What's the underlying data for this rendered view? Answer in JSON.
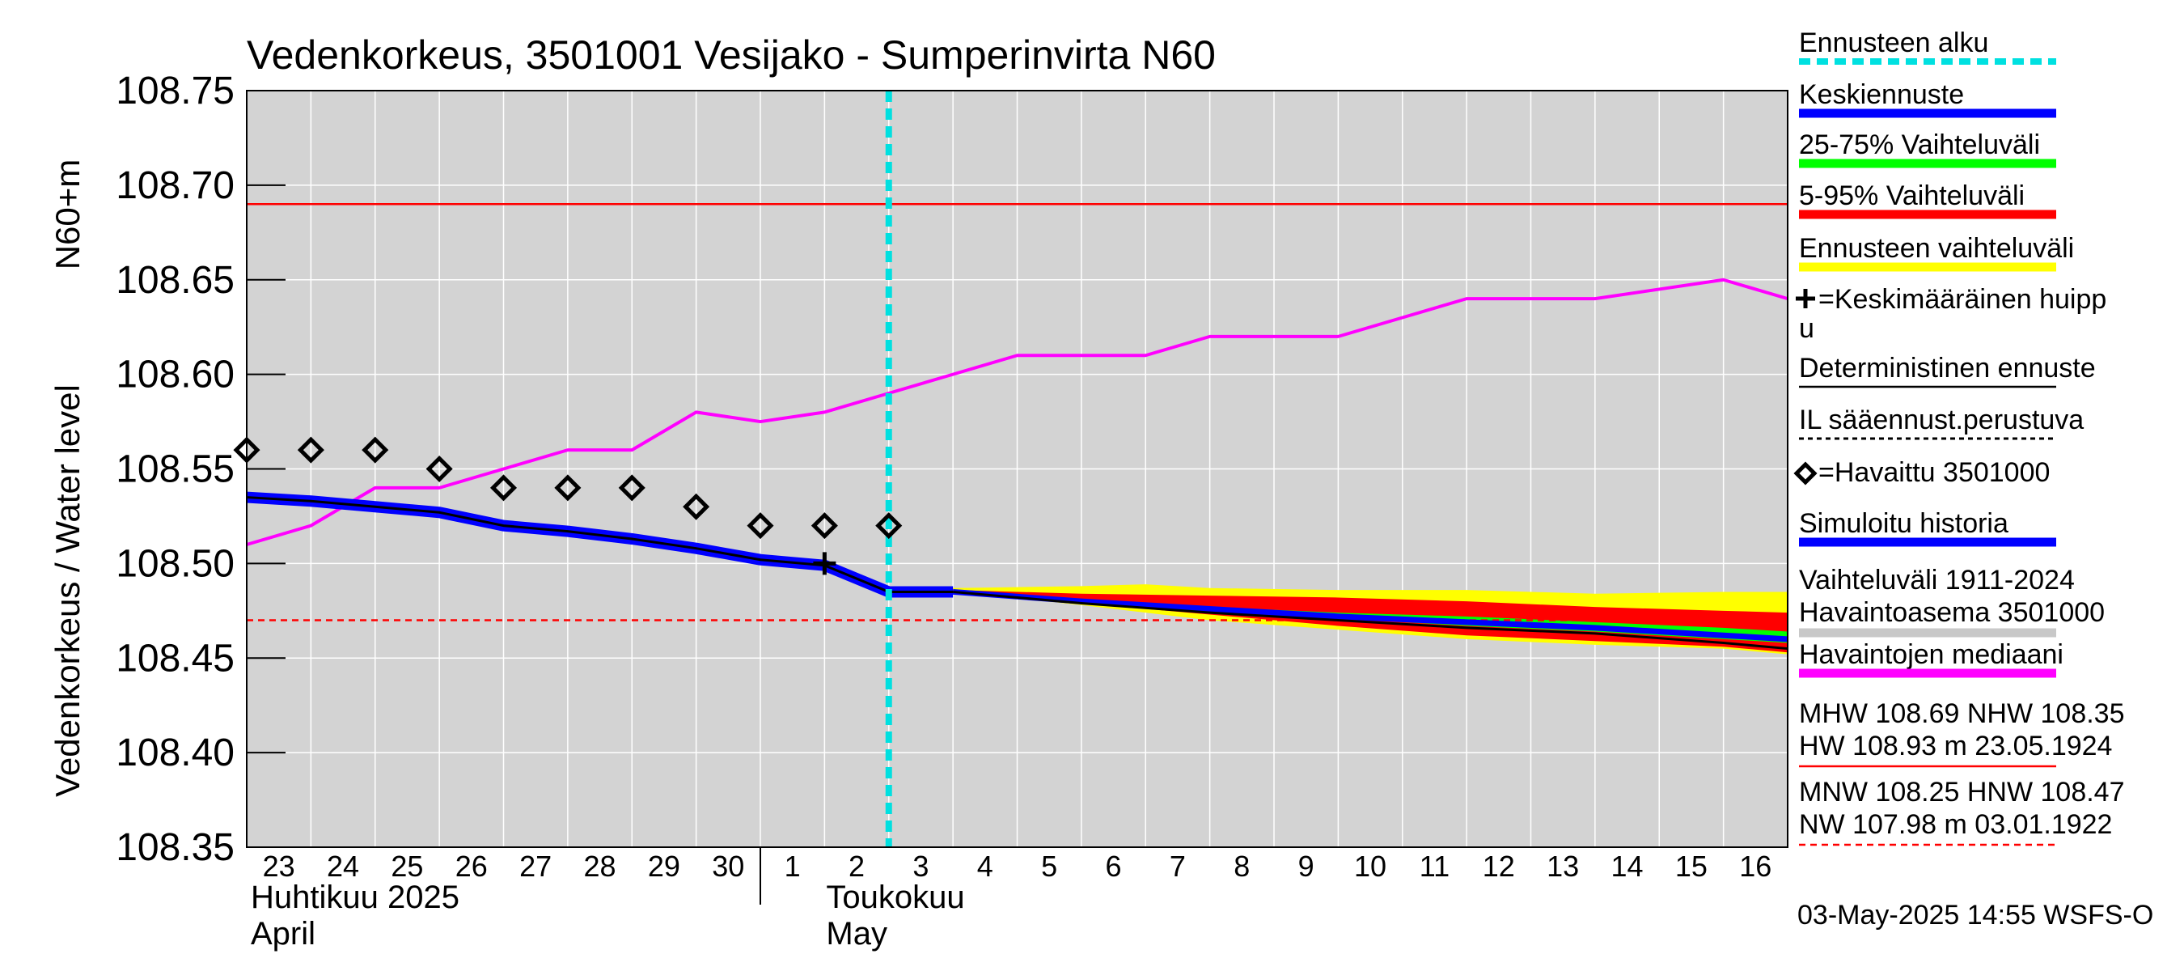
{
  "chart_data": {
    "type": "line",
    "title": "Vedenkorkeus, 3501001 Vesijako - Sumperinvirta N60",
    "ylabel_line1": "N60+m",
    "ylabel_line2": "Vedenkorkeus / Water level",
    "ylim": [
      108.35,
      108.75
    ],
    "y_ticks": [
      "108.75",
      "108.70",
      "108.65",
      "108.60",
      "108.55",
      "108.50",
      "108.45",
      "108.40",
      "108.35"
    ],
    "x_start": "2025-04-23",
    "x_end": "2025-05-17",
    "x_tick_labels": [
      "23",
      "24",
      "25",
      "26",
      "27",
      "28",
      "29",
      "30",
      "1",
      "2",
      "3",
      "4",
      "5",
      "6",
      "7",
      "8",
      "9",
      "10",
      "11",
      "12",
      "13",
      "14",
      "15",
      "16"
    ],
    "month_labels": [
      {
        "fi": "Huhtikuu  2025",
        "en": "April"
      },
      {
        "fi": "Toukokuu",
        "en": "May"
      }
    ],
    "forecast_start": "2025-05-03",
    "reference_lines": {
      "MHW": 108.69,
      "HNW": 108.47
    },
    "series": [
      {
        "name": "Havaintojen mediaani",
        "x": [
          "2025-04-23",
          "2025-04-24",
          "2025-04-25",
          "2025-04-26",
          "2025-04-27",
          "2025-04-28",
          "2025-04-29",
          "2025-04-30",
          "2025-05-01",
          "2025-05-02",
          "2025-05-03",
          "2025-05-04",
          "2025-05-05",
          "2025-05-06",
          "2025-05-07",
          "2025-05-08",
          "2025-05-09",
          "2025-05-10",
          "2025-05-11",
          "2025-05-12",
          "2025-05-13",
          "2025-05-14",
          "2025-05-15",
          "2025-05-16",
          "2025-05-17"
        ],
        "y": [
          108.51,
          108.52,
          108.54,
          108.54,
          108.55,
          108.56,
          108.56,
          108.58,
          108.575,
          108.58,
          108.59,
          108.6,
          108.61,
          108.61,
          108.61,
          108.62,
          108.62,
          108.62,
          108.63,
          108.64,
          108.64,
          108.64,
          108.645,
          108.65,
          108.64
        ]
      },
      {
        "name": "Simuloitu historia",
        "x": [
          "2025-04-23",
          "2025-04-24",
          "2025-04-25",
          "2025-04-26",
          "2025-04-27",
          "2025-04-28",
          "2025-04-29",
          "2025-04-30",
          "2025-05-01",
          "2025-05-02",
          "2025-05-03",
          "2025-05-04"
        ],
        "y": [
          108.535,
          108.533,
          108.53,
          108.527,
          108.52,
          108.517,
          108.513,
          108.508,
          108.502,
          108.499,
          108.485,
          108.485
        ]
      },
      {
        "name": "Keskiennuste",
        "x": [
          "2025-05-04",
          "2025-05-06",
          "2025-05-08",
          "2025-05-10",
          "2025-05-12",
          "2025-05-14",
          "2025-05-16",
          "2025-05-17"
        ],
        "y": [
          108.485,
          108.48,
          108.476,
          108.472,
          108.469,
          108.466,
          108.462,
          108.46
        ]
      },
      {
        "name": "Deterministinen ennuste",
        "x": [
          "2025-05-04",
          "2025-05-06",
          "2025-05-08",
          "2025-05-10",
          "2025-05-12",
          "2025-05-14",
          "2025-05-16",
          "2025-05-17"
        ],
        "y": [
          108.485,
          108.479,
          108.474,
          108.47,
          108.466,
          108.463,
          108.458,
          108.455
        ]
      },
      {
        "name": "=Havaittu 3501000",
        "type": "scatter",
        "x": [
          "2025-04-23",
          "2025-04-24",
          "2025-04-25",
          "2025-04-26",
          "2025-04-27",
          "2025-04-28",
          "2025-04-29",
          "2025-04-30",
          "2025-05-01",
          "2025-05-02",
          "2025-05-03"
        ],
        "y": [
          108.56,
          108.56,
          108.56,
          108.55,
          108.54,
          108.54,
          108.54,
          108.53,
          108.52,
          108.52,
          108.52
        ]
      },
      {
        "name": "=Keskimääräinen huippu",
        "type": "scatter",
        "x": [
          "2025-05-02"
        ],
        "y": [
          108.5
        ]
      }
    ],
    "bands": [
      {
        "name": "Ennusteen vaihteluväli",
        "x": [
          "2025-05-04",
          "2025-05-06",
          "2025-05-07",
          "2025-05-08",
          "2025-05-10",
          "2025-05-12",
          "2025-05-14",
          "2025-05-16",
          "2025-05-17"
        ],
        "low": [
          108.485,
          108.478,
          108.474,
          108.47,
          108.465,
          108.46,
          108.457,
          108.455,
          108.452
        ],
        "high": [
          108.487,
          108.488,
          108.489,
          108.487,
          108.486,
          108.486,
          108.484,
          108.485,
          108.485
        ]
      },
      {
        "name": "5-95% Vaihteluväli",
        "x": [
          "2025-05-04",
          "2025-05-06",
          "2025-05-08",
          "2025-05-10",
          "2025-05-12",
          "2025-05-14",
          "2025-05-16",
          "2025-05-17"
        ],
        "low": [
          108.485,
          108.479,
          108.473,
          108.467,
          108.462,
          108.459,
          108.456,
          108.453
        ],
        "high": [
          108.486,
          108.484,
          108.483,
          108.482,
          108.48,
          108.477,
          108.475,
          108.474
        ]
      },
      {
        "name": "25-75% Vaihteluväli",
        "x": [
          "2025-05-04",
          "2025-05-06",
          "2025-05-08",
          "2025-05-10",
          "2025-05-12",
          "2025-05-14",
          "2025-05-16",
          "2025-05-17"
        ],
        "low": [
          108.485,
          108.48,
          108.475,
          108.471,
          108.467,
          108.464,
          108.46,
          108.458
        ],
        "high": [
          108.485,
          108.481,
          108.477,
          108.474,
          108.472,
          108.469,
          108.466,
          108.464
        ]
      }
    ],
    "legend": {
      "position": "right",
      "items": [
        {
          "label": "Ennusteen alku",
          "style": "dashed",
          "color": "#00e0e0"
        },
        {
          "label": "Keskiennuste",
          "style": "solid",
          "color": "#0000ff"
        },
        {
          "label": "25-75% Vaihteluväli",
          "style": "solid",
          "color": "#00ff00"
        },
        {
          "label": "5-95% Vaihteluväli",
          "style": "solid",
          "color": "#ff0000"
        },
        {
          "label": "Ennusteen vaihteluväli",
          "style": "solid",
          "color": "#ffff00"
        },
        {
          "label": "=Keskimääräinen huipp",
          "label_cont": "u",
          "style": "plus-marker",
          "color": "#000000"
        },
        {
          "label": "Deterministinen ennuste",
          "style": "thin",
          "color": "#000000"
        },
        {
          "label": "IL sääennust.perustuva",
          "style": "dotted",
          "color": "#000000"
        },
        {
          "label": "=Havaittu 3501000",
          "style": "diamond-marker",
          "color": "#000000"
        },
        {
          "label": "Simuloitu historia",
          "style": "solid",
          "color": "#0000ff"
        },
        {
          "label": "Vaihteluväli 1911-2024",
          "label_cont": " Havaintoasema 3501000",
          "style": "solid",
          "color": "#c8c8c8"
        },
        {
          "label": "Havaintojen mediaani",
          "style": "solid",
          "color": "#ff00ff"
        },
        {
          "label": "MHW 108.69 NHW 108.35",
          "label_cont": "HW 108.93 m 23.05.1924",
          "style": "thin",
          "color": "#ff0000"
        },
        {
          "label": "MNW 108.25 HNW 108.47",
          "label_cont": "NW 107.98 m 03.01.1922",
          "style": "dashed-thin",
          "color": "#ff0000"
        }
      ]
    },
    "footer": "03-May-2025 14:55 WSFS-O"
  },
  "colors": {
    "plot_bg": "#d3d3d3",
    "grid": "#ffffff",
    "median": "#ff00ff",
    "history": "#0000ff",
    "mean_forecast": "#0000ff",
    "forecast_start": "#00e0e0",
    "mhw": "#ff0000",
    "yellow": "#ffff00",
    "red": "#ff0000",
    "green": "#00ff00"
  }
}
